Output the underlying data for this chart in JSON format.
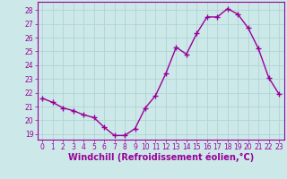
{
  "x": [
    0,
    1,
    2,
    3,
    4,
    5,
    6,
    7,
    8,
    9,
    10,
    11,
    12,
    13,
    14,
    15,
    16,
    17,
    18,
    19,
    20,
    21,
    22,
    23
  ],
  "y": [
    21.6,
    21.3,
    20.9,
    20.7,
    20.4,
    20.2,
    19.5,
    18.9,
    18.9,
    19.4,
    20.9,
    21.8,
    23.4,
    25.3,
    24.8,
    26.3,
    27.5,
    27.5,
    28.1,
    27.7,
    26.7,
    25.2,
    23.1,
    21.9
  ],
  "line_color": "#990099",
  "marker": "+",
  "marker_size": 4,
  "marker_linewidth": 1.0,
  "xlabel": "Windchill (Refroidissement éolien,°C)",
  "xlabel_color": "#990099",
  "background_color": "#cce8e8",
  "grid_color": "#b0d4d4",
  "tick_color": "#990099",
  "spine_color": "#990099",
  "ylim": [
    18.6,
    28.6
  ],
  "xlim": [
    -0.5,
    23.5
  ],
  "yticks": [
    19,
    20,
    21,
    22,
    23,
    24,
    25,
    26,
    27,
    28
  ],
  "xticks": [
    0,
    1,
    2,
    3,
    4,
    5,
    6,
    7,
    8,
    9,
    10,
    11,
    12,
    13,
    14,
    15,
    16,
    17,
    18,
    19,
    20,
    21,
    22,
    23
  ],
  "tick_fontsize": 5.5,
  "xlabel_fontsize": 7.0,
  "line_width": 1.0
}
